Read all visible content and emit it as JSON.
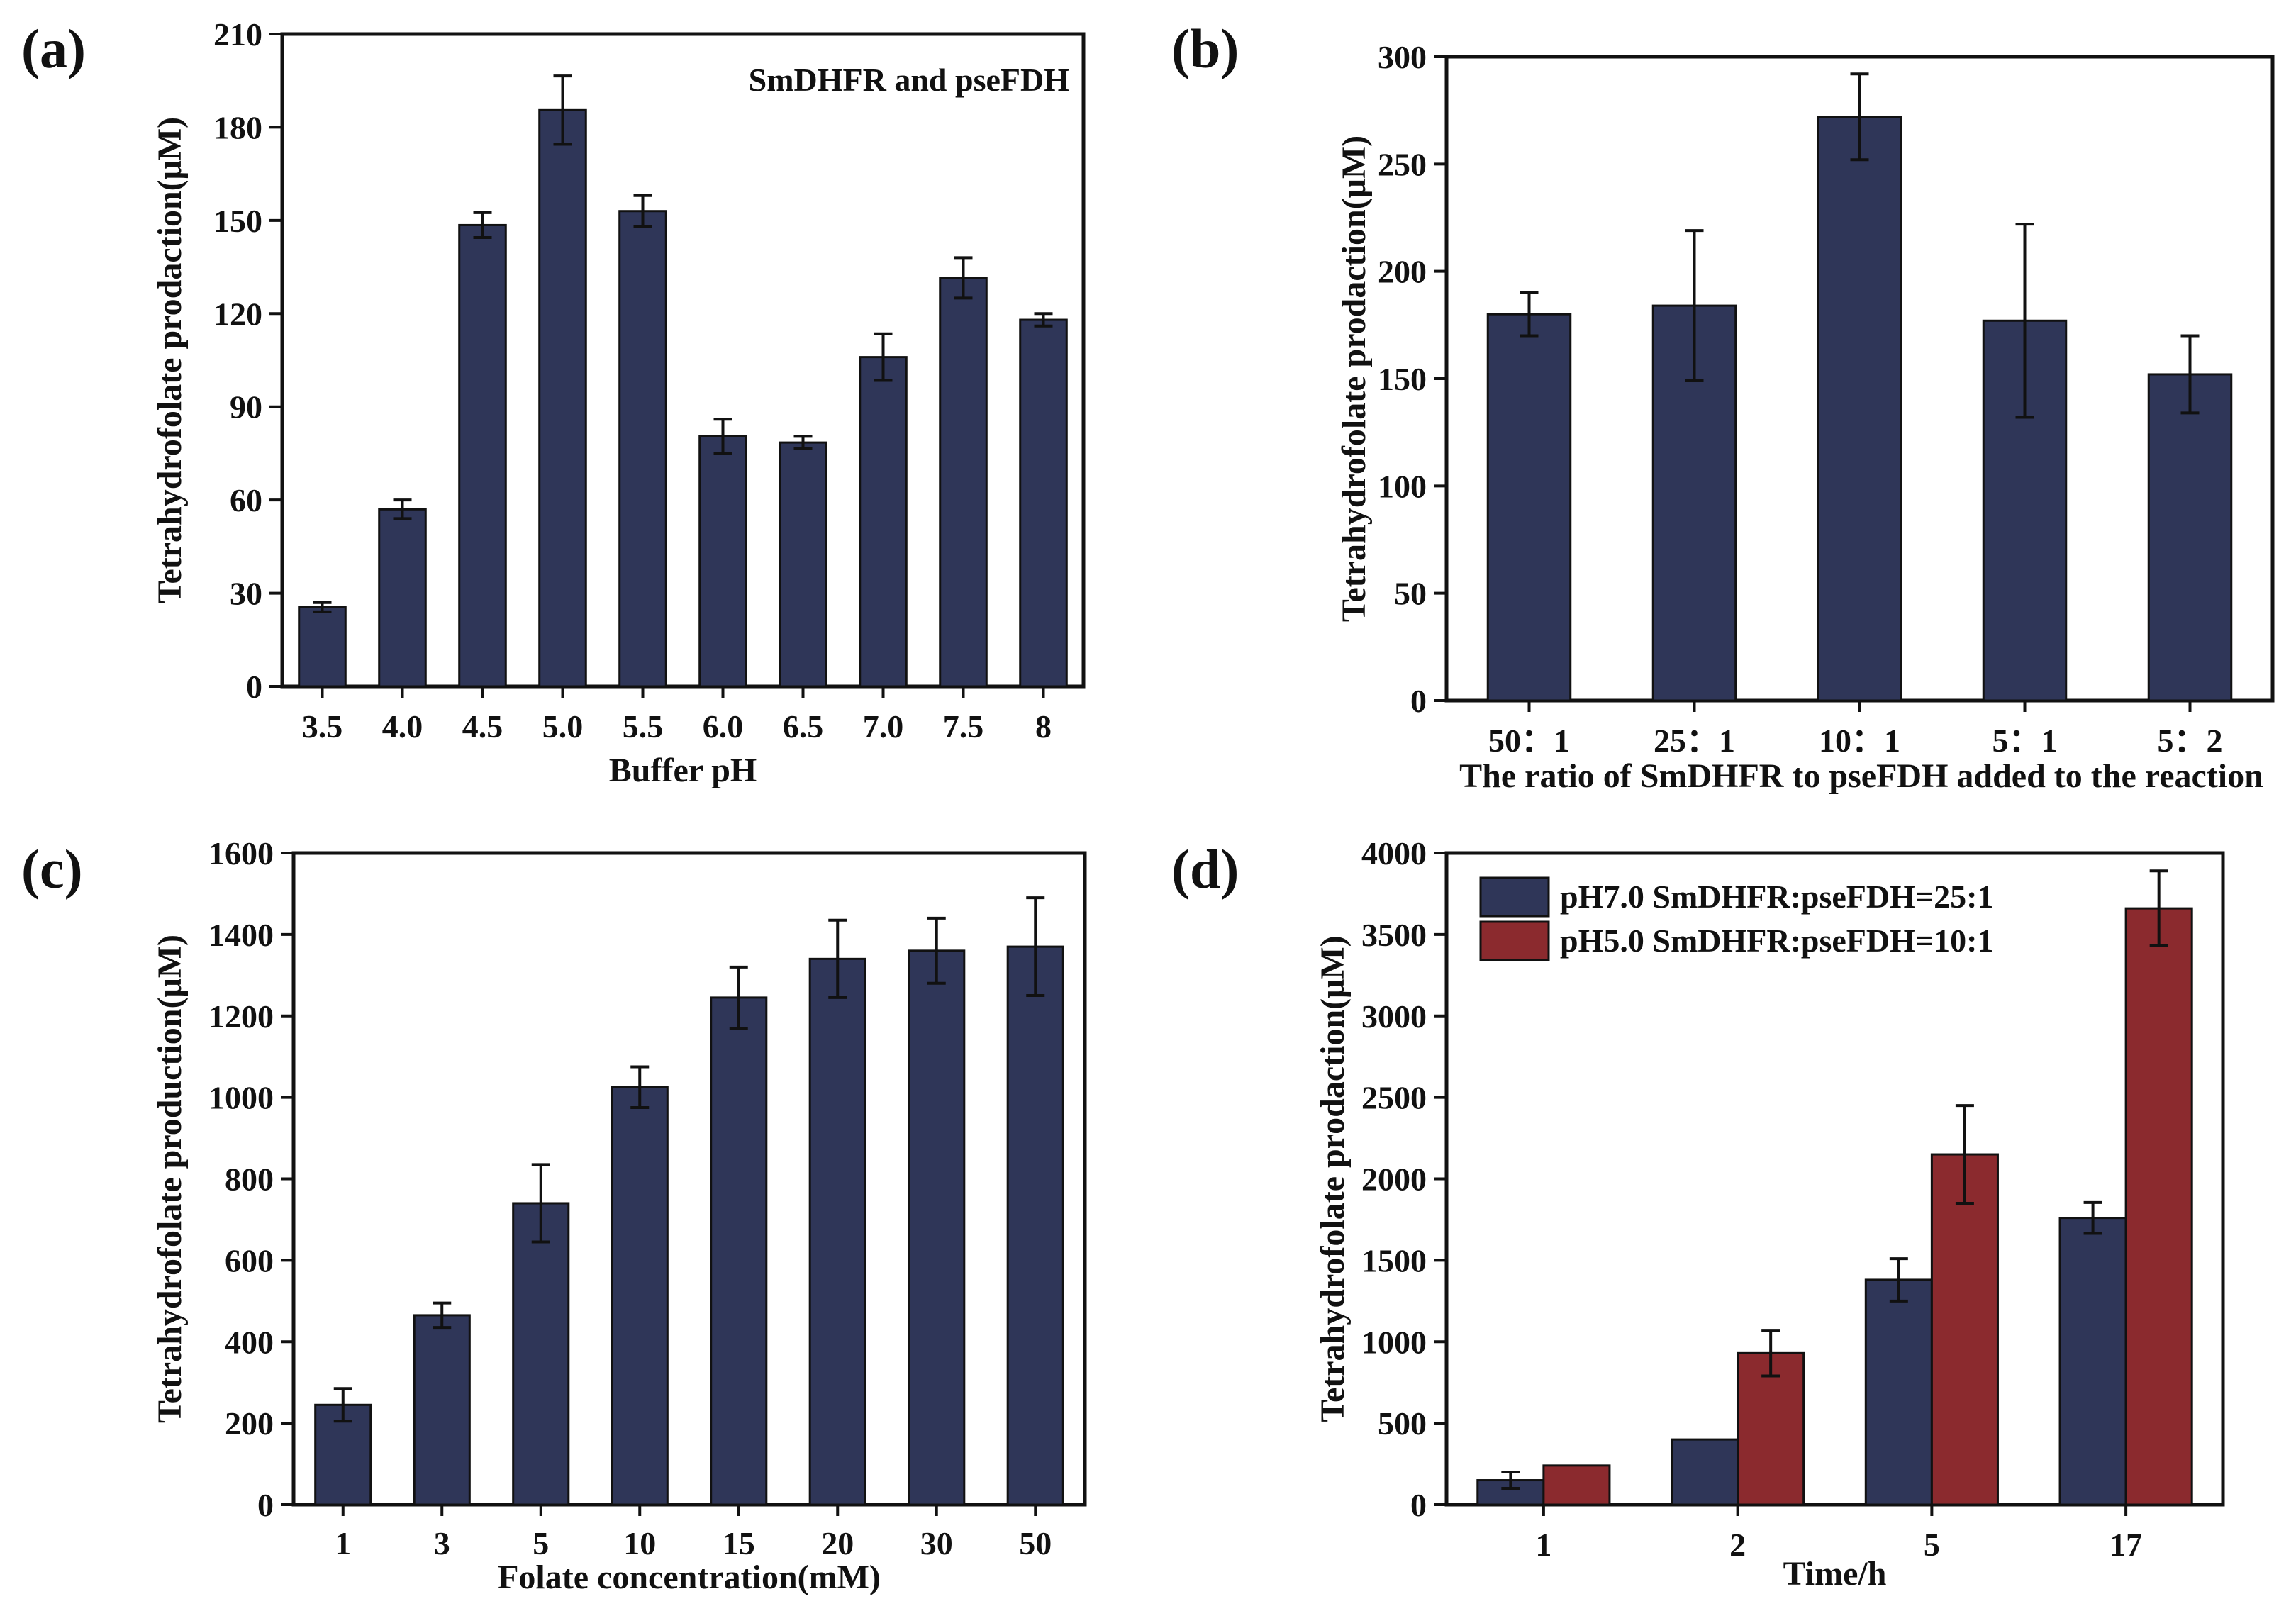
{
  "colors": {
    "navy": "#2f3658",
    "red": "#8b2a2e",
    "axis": "#111111"
  },
  "chart_data": [
    {
      "id": "a",
      "panel_label": "(a)",
      "type": "bar",
      "annotation": "SmDHFR and pseFDH",
      "categories": [
        "3.5",
        "4.0",
        "4.5",
        "5.0",
        "5.5",
        "6.0",
        "6.5",
        "7.0",
        "7.5",
        "8"
      ],
      "series": [
        {
          "name": "",
          "color": "navy",
          "values": [
            25.5,
            57,
            148.5,
            185.5,
            153,
            80.5,
            78.5,
            106,
            131.5,
            118
          ],
          "errors": [
            1.5,
            3,
            4,
            11,
            5,
            5.5,
            2,
            7.5,
            6.5,
            2
          ]
        }
      ],
      "xlabel": "Buffer pH",
      "ylabel": "Tetrahydrofolate prodaction(μM)",
      "ylim": [
        0,
        210
      ],
      "yticks": [
        "0",
        "30",
        "60",
        "90",
        "120",
        "150",
        "180",
        "210"
      ],
      "ytick_values": [
        0,
        30,
        60,
        90,
        120,
        150,
        180,
        210
      ]
    },
    {
      "id": "b",
      "panel_label": "(b)",
      "type": "bar",
      "categories": [
        "50：1",
        "25：1",
        "10：1",
        "5：1",
        "5：2"
      ],
      "series": [
        {
          "name": "",
          "color": "navy",
          "values": [
            180,
            184,
            272,
            177,
            152
          ],
          "errors": [
            10,
            35,
            20,
            45,
            18
          ]
        }
      ],
      "xlabel": "The ratio of SmDHFR to pseFDH added to the reaction",
      "ylabel": "Tetrahydrofolate prodaction(μM)",
      "ylim": [
        0,
        300
      ],
      "yticks": [
        "0",
        "50",
        "100",
        "150",
        "200",
        "250",
        "300"
      ],
      "ytick_values": [
        0,
        50,
        100,
        150,
        200,
        250,
        300
      ]
    },
    {
      "id": "c",
      "panel_label": "(c)",
      "type": "bar",
      "categories": [
        "1",
        "3",
        "5",
        "10",
        "15",
        "20",
        "30",
        "50"
      ],
      "series": [
        {
          "name": "",
          "color": "navy",
          "values": [
            245,
            465,
            740,
            1025,
            1245,
            1340,
            1360,
            1370
          ],
          "errors": [
            40,
            30,
            95,
            50,
            75,
            95,
            80,
            120
          ]
        }
      ],
      "xlabel": "Folate concentration(mM)",
      "ylabel": "Tetrahydrofolate production(μM)",
      "ylim": [
        0,
        1600
      ],
      "yticks": [
        "0",
        "200",
        "400",
        "600",
        "800",
        "1000",
        "1200",
        "1400",
        "1600"
      ],
      "ytick_values": [
        0,
        200,
        400,
        600,
        800,
        1000,
        1200,
        1400,
        1600
      ]
    },
    {
      "id": "d",
      "panel_label": "(d)",
      "type": "bar",
      "categories": [
        "1",
        "2",
        "5",
        "17"
      ],
      "series": [
        {
          "name": "pH7.0 SmDHFR:pseFDH=25:1",
          "color": "navy",
          "values": [
            150,
            400,
            1380,
            1760
          ],
          "errors": [
            50,
            0,
            130,
            95
          ]
        },
        {
          "name": "pH5.0 SmDHFR:pseFDH=10:1",
          "color": "red",
          "values": [
            240,
            930,
            2150,
            3660
          ],
          "errors": [
            0,
            140,
            300,
            230
          ]
        }
      ],
      "xlabel": "Time/h",
      "ylabel": "Tetrahydrofolate prodaction(μM)",
      "ylim": [
        0,
        4000
      ],
      "yticks": [
        "0",
        "500",
        "1000",
        "1500",
        "2000",
        "2500",
        "3000",
        "3500",
        "4000"
      ],
      "ytick_values": [
        0,
        500,
        1000,
        1500,
        2000,
        2500,
        3000,
        3500,
        4000
      ],
      "legend_position": "top-left"
    }
  ]
}
